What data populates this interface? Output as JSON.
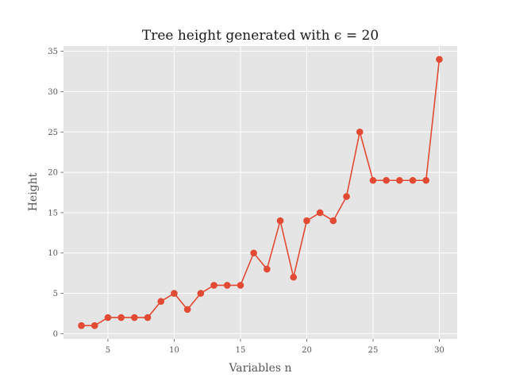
{
  "chart_data": {
    "type": "line",
    "title": "Tree height generated with ϵ = 20",
    "xlabel": "Variables n",
    "ylabel": "Height",
    "xlim": [
      1.65,
      31.35
    ],
    "ylim": [
      -0.65,
      35.65
    ],
    "xticks": [
      5,
      10,
      15,
      20,
      25,
      30
    ],
    "yticks": [
      0,
      5,
      10,
      15,
      20,
      25,
      30,
      35
    ],
    "grid": true,
    "colors": {
      "series": "#E24A33",
      "background": "#E5E5E5",
      "grid": "#FFFFFF"
    },
    "series": [
      {
        "x": [
          3,
          4,
          5,
          6,
          7,
          8,
          9,
          10,
          11,
          12,
          13,
          14,
          15,
          16,
          17,
          18,
          19,
          20,
          21,
          22,
          23,
          24,
          25,
          26,
          27,
          28,
          29,
          30
        ],
        "values": [
          1,
          1,
          2,
          2,
          2,
          2,
          4,
          5,
          3,
          5,
          6,
          6,
          6,
          10,
          8,
          14,
          7,
          14,
          15,
          14,
          17,
          25,
          19,
          19,
          19,
          19,
          19,
          34
        ]
      }
    ]
  }
}
